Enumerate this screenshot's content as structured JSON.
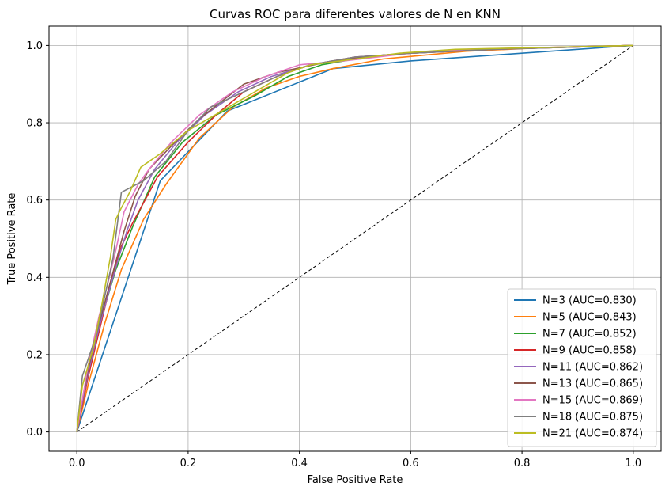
{
  "chart_data": {
    "type": "line",
    "title": "Curvas ROC para diferentes valores de N en KNN",
    "xlabel": "False Positive Rate",
    "ylabel": "True Positive Rate",
    "xlim": [
      -0.05,
      1.05
    ],
    "ylim": [
      -0.05,
      1.05
    ],
    "xticks": [
      "0.0",
      "0.2",
      "0.4",
      "0.6",
      "0.8",
      "1.0"
    ],
    "yticks": [
      "0.0",
      "0.2",
      "0.4",
      "0.6",
      "0.8",
      "1.0"
    ],
    "grid": true,
    "legend_position": "lower-right",
    "diagonal": {
      "x": [
        0,
        1
      ],
      "y": [
        0,
        1
      ],
      "style": "dashed",
      "color": "#000000"
    },
    "series": [
      {
        "name": "N=3 (AUC=0.830)",
        "color": "#1f77b4",
        "x": [
          0,
          0.15,
          0.27,
          0.46,
          0.6,
          0.8,
          1.0
        ],
        "y": [
          0,
          0.65,
          0.83,
          0.94,
          0.96,
          0.98,
          1.0
        ]
      },
      {
        "name": "N=5 (AUC=0.843)",
        "color": "#ff7f0e",
        "x": [
          0,
          0.02,
          0.05,
          0.08,
          0.12,
          0.16,
          0.22,
          0.28,
          0.34,
          0.4,
          0.46,
          0.55,
          0.7,
          0.85,
          1.0
        ],
        "y": [
          0,
          0.12,
          0.28,
          0.42,
          0.55,
          0.64,
          0.76,
          0.84,
          0.89,
          0.92,
          0.94,
          0.965,
          0.985,
          0.995,
          1.0
        ]
      },
      {
        "name": "N=7 (AUC=0.852)",
        "color": "#2ca02c",
        "x": [
          0,
          0.02,
          0.045,
          0.07,
          0.1,
          0.14,
          0.19,
          0.25,
          0.32,
          0.38,
          0.44,
          0.52,
          0.6,
          0.75,
          1.0
        ],
        "y": [
          0,
          0.15,
          0.3,
          0.42,
          0.53,
          0.66,
          0.75,
          0.82,
          0.87,
          0.92,
          0.95,
          0.97,
          0.98,
          0.99,
          1.0
        ]
      },
      {
        "name": "N=9 (AUC=0.858)",
        "color": "#d62728",
        "x": [
          0,
          0.02,
          0.04,
          0.06,
          0.08,
          0.1,
          0.145,
          0.2,
          0.25,
          0.3,
          0.36,
          0.42,
          0.5,
          0.6,
          0.75,
          1.0
        ],
        "y": [
          0,
          0.14,
          0.26,
          0.38,
          0.48,
          0.54,
          0.66,
          0.75,
          0.82,
          0.88,
          0.92,
          0.95,
          0.97,
          0.98,
          0.99,
          1.0
        ]
      },
      {
        "name": "N=11 (AUC=0.862)",
        "color": "#9467bd",
        "x": [
          0,
          0.02,
          0.04,
          0.055,
          0.075,
          0.09,
          0.11,
          0.14,
          0.18,
          0.23,
          0.29,
          0.35,
          0.42,
          0.5,
          0.6,
          0.75,
          1.0
        ],
        "y": [
          0,
          0.15,
          0.27,
          0.35,
          0.45,
          0.52,
          0.6,
          0.68,
          0.75,
          0.82,
          0.88,
          0.92,
          0.95,
          0.97,
          0.98,
          0.99,
          1.0
        ]
      },
      {
        "name": "N=13 (AUC=0.865)",
        "color": "#8c564b",
        "x": [
          0,
          0.02,
          0.04,
          0.055,
          0.07,
          0.085,
          0.105,
          0.13,
          0.17,
          0.22,
          0.3,
          0.36,
          0.46,
          0.55,
          0.65,
          0.8,
          1.0
        ],
        "y": [
          0,
          0.16,
          0.28,
          0.36,
          0.44,
          0.52,
          0.61,
          0.68,
          0.74,
          0.81,
          0.9,
          0.93,
          0.96,
          0.975,
          0.985,
          0.993,
          1.0
        ]
      },
      {
        "name": "N=15 (AUC=0.869)",
        "color": "#e377c2",
        "x": [
          0,
          0.02,
          0.04,
          0.055,
          0.07,
          0.085,
          0.11,
          0.13,
          0.17,
          0.22,
          0.28,
          0.34,
          0.4,
          0.48,
          0.6,
          0.7,
          0.85,
          1.0
        ],
        "y": [
          0,
          0.17,
          0.3,
          0.38,
          0.47,
          0.57,
          0.64,
          0.68,
          0.75,
          0.82,
          0.88,
          0.92,
          0.95,
          0.96,
          0.98,
          0.99,
          0.995,
          1.0
        ]
      },
      {
        "name": "N=18 (AUC=0.875)",
        "color": "#7f7f7f",
        "x": [
          0,
          0.01,
          0.035,
          0.05,
          0.065,
          0.08,
          0.12,
          0.16,
          0.2,
          0.24,
          0.3,
          0.36,
          0.42,
          0.5,
          0.6,
          0.75,
          1.0
        ],
        "y": [
          0,
          0.145,
          0.25,
          0.35,
          0.45,
          0.62,
          0.65,
          0.7,
          0.78,
          0.84,
          0.88,
          0.92,
          0.95,
          0.97,
          0.98,
          0.99,
          1.0
        ]
      },
      {
        "name": "N=21 (AUC=0.874)",
        "color": "#bcbd22",
        "x": [
          0,
          0.01,
          0.03,
          0.045,
          0.06,
          0.07,
          0.08,
          0.095,
          0.115,
          0.15,
          0.2,
          0.26,
          0.32,
          0.38,
          0.42,
          0.5,
          0.58,
          0.68,
          0.85,
          1.0
        ],
        "y": [
          0,
          0.12,
          0.22,
          0.33,
          0.45,
          0.55,
          0.58,
          0.62,
          0.685,
          0.72,
          0.78,
          0.83,
          0.88,
          0.93,
          0.95,
          0.965,
          0.98,
          0.99,
          0.995,
          1.0
        ]
      }
    ]
  }
}
